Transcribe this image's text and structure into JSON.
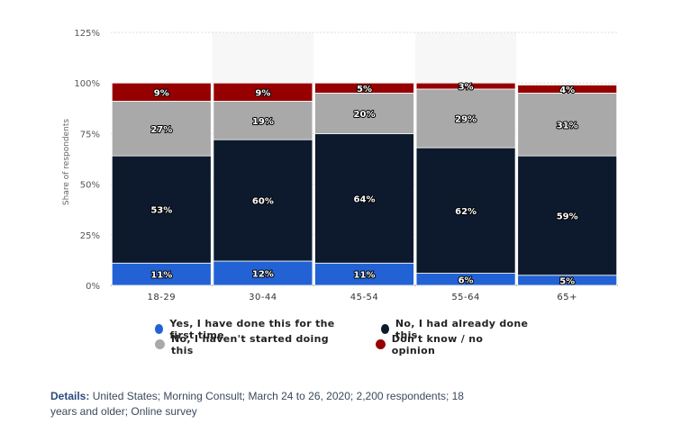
{
  "chart_data": {
    "type": "bar",
    "stacked": true,
    "ylabel": "Share of respondents",
    "ylim": [
      0,
      125
    ],
    "yticks": [
      "0%",
      "25%",
      "50%",
      "75%",
      "100%",
      "125%"
    ],
    "ytick_values": [
      0,
      25,
      50,
      75,
      100,
      125
    ],
    "categories": [
      "18-29",
      "30-44",
      "45-54",
      "55-64",
      "65+"
    ],
    "series": [
      {
        "name": "Yes, I have done this for the first time",
        "color": "#2262d4",
        "values": [
          11,
          12,
          11,
          6,
          5
        ],
        "labels": [
          "11%",
          "12%",
          "11%",
          "6%",
          "5%"
        ]
      },
      {
        "name": "No, I had already done this",
        "color": "#0d1a2e",
        "values": [
          53,
          60,
          64,
          62,
          59
        ],
        "labels": [
          "53%",
          "60%",
          "64%",
          "62%",
          "59%"
        ]
      },
      {
        "name": "No, I haven't started doing this",
        "color": "#a9a9a9",
        "values": [
          27,
          19,
          20,
          29,
          31
        ],
        "labels": [
          "27%",
          "19%",
          "20%",
          "29%",
          "31%"
        ]
      },
      {
        "name": "Don't know / no opinion",
        "color": "#960000",
        "values": [
          9,
          9,
          5,
          3,
          4
        ],
        "labels": [
          "9%",
          "9%",
          "5%",
          "3%",
          "4%"
        ]
      }
    ],
    "grid": true,
    "legend_position": "bottom"
  },
  "details": {
    "label": "Details:",
    "text": "United States; Morning Consult; March 24 to 26, 2020; 2,200 respondents; 18 years and older; Online survey"
  }
}
